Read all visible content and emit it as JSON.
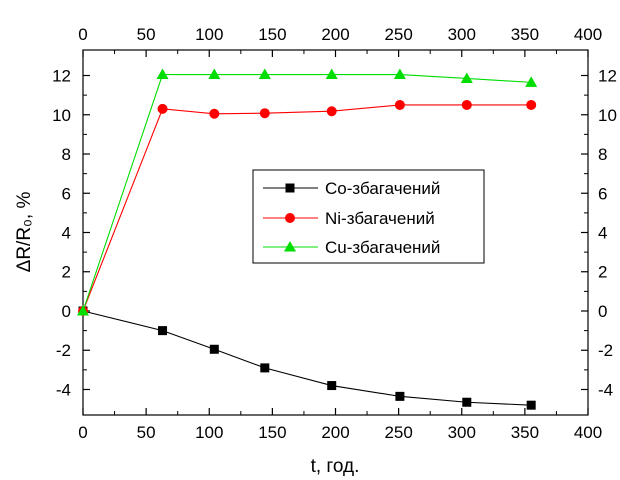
{
  "chart_data": {
    "type": "line",
    "xlabel": "t, год.",
    "ylabel": "ΔR/R₀, %",
    "xlim": [
      0,
      400
    ],
    "ylim": [
      -5.3,
      13.3
    ],
    "x_ticks": [
      0,
      50,
      100,
      150,
      200,
      250,
      300,
      350,
      400
    ],
    "y_ticks": [
      -4,
      -2,
      0,
      2,
      4,
      6,
      8,
      10,
      12
    ],
    "grid": false,
    "mirrored_axes": true,
    "legend_position": "center-right",
    "series": [
      {
        "name": "Co-збагачений",
        "marker": "square",
        "color": "#000000",
        "points": [
          [
            0,
            0
          ],
          [
            63,
            -1.0
          ],
          [
            104,
            -1.95
          ],
          [
            144,
            -2.9
          ],
          [
            197,
            -3.8
          ],
          [
            251,
            -4.35
          ],
          [
            304,
            -4.65
          ],
          [
            355,
            -4.8
          ]
        ]
      },
      {
        "name": "Ni-збагачений",
        "marker": "circle",
        "color": "#ff0000",
        "points": [
          [
            0,
            0
          ],
          [
            63,
            10.3
          ],
          [
            104,
            10.05
          ],
          [
            144,
            10.08
          ],
          [
            197,
            10.18
          ],
          [
            251,
            10.5
          ],
          [
            304,
            10.5
          ],
          [
            355,
            10.5
          ]
        ]
      },
      {
        "name": "Cu-збагачений",
        "marker": "triangle",
        "color": "#00dd00",
        "points": [
          [
            0,
            0
          ],
          [
            63,
            12.05
          ],
          [
            104,
            12.05
          ],
          [
            144,
            12.05
          ],
          [
            197,
            12.05
          ],
          [
            251,
            12.05
          ],
          [
            304,
            11.85
          ],
          [
            355,
            11.65
          ]
        ]
      }
    ]
  }
}
